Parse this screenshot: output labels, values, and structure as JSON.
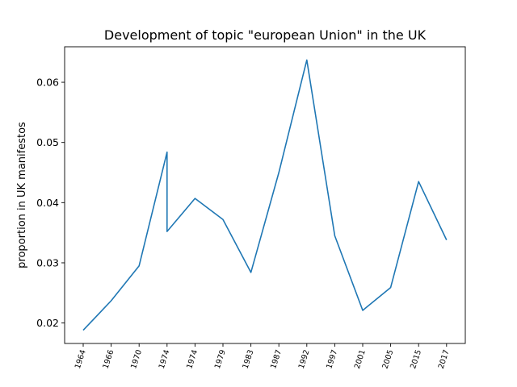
{
  "chart_data": {
    "type": "line",
    "title": "Development of topic \"european Union\" in the UK",
    "xlabel": "",
    "ylabel": "proportion in UK manifestos",
    "categories": [
      "1964",
      "1966",
      "1970",
      "1974",
      "1974",
      "1979",
      "1983",
      "1987",
      "1992",
      "1997",
      "2001",
      "2005",
      "2015",
      "2017"
    ],
    "series": [
      {
        "color": "#1f77b4",
        "points": [
          {
            "x": "1964",
            "y": 0.0188
          },
          {
            "x": "1966",
            "y": 0.0237
          },
          {
            "x": "1970",
            "y": 0.0295
          },
          {
            "x": "1974",
            "y": 0.0484
          },
          {
            "x": "1974",
            "y": 0.0352
          },
          {
            "x": "1974",
            "y": 0.0407
          },
          {
            "x": "1979",
            "y": 0.0372
          },
          {
            "x": "1983",
            "y": 0.0284
          },
          {
            "x": "1987",
            "y": 0.045
          },
          {
            "x": "1992",
            "y": 0.0637
          },
          {
            "x": "1997",
            "y": 0.0345
          },
          {
            "x": "2001",
            "y": 0.0221
          },
          {
            "x": "2005",
            "y": 0.0259
          },
          {
            "x": "2015",
            "y": 0.0435
          },
          {
            "x": "2017",
            "y": 0.0338
          }
        ]
      }
    ],
    "point_category_index": [
      0,
      1,
      2,
      3,
      3,
      4,
      5,
      6,
      7,
      8,
      9,
      10,
      11,
      12,
      13
    ],
    "yticks": [
      "0.02",
      "0.03",
      "0.04",
      "0.05",
      "0.06"
    ],
    "ytick_values": [
      0.02,
      0.03,
      0.04,
      0.05,
      0.06
    ],
    "ylim": [
      0.0166,
      0.0659
    ],
    "grid": false,
    "legend": "none"
  }
}
